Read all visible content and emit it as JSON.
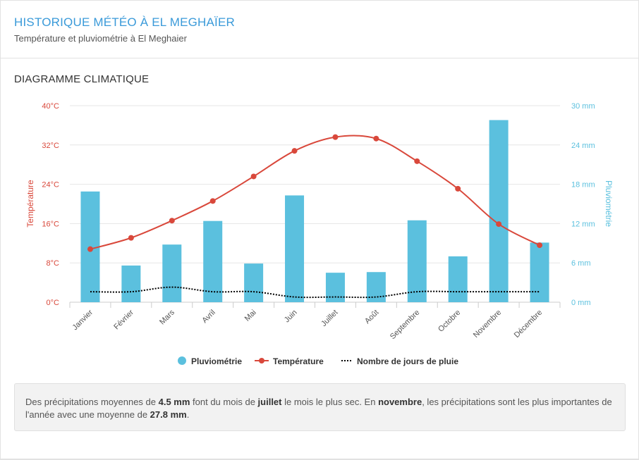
{
  "header": {
    "title": "HISTORIQUE MÉTÉO À EL MEGHAÏER",
    "subtitle": "Température et pluviométrie à El Meghaier"
  },
  "section": {
    "title": "DIAGRAMME CLIMATIQUE"
  },
  "colors": {
    "temperature": "#d9483b",
    "precipitation": "#5bc0de",
    "rain_days": "#000000",
    "title": "#3a9ad9"
  },
  "chart_data": {
    "type": "bar",
    "categories": [
      "Janvier",
      "Février",
      "Mars",
      "Avril",
      "Mai",
      "Juin",
      "Juillet",
      "Août",
      "Septembre",
      "Octobre",
      "Novembre",
      "Décembre"
    ],
    "series": [
      {
        "name": "Pluviométrie",
        "type": "bar",
        "axis": "right",
        "unit": "mm",
        "values": [
          16.9,
          5.6,
          8.8,
          12.4,
          5.9,
          16.3,
          4.5,
          4.6,
          12.5,
          7.0,
          27.8,
          9.1
        ]
      },
      {
        "name": "Température",
        "type": "line",
        "axis": "left",
        "unit": "°C",
        "values": [
          10.8,
          13.1,
          16.6,
          20.6,
          25.6,
          30.8,
          33.6,
          33.3,
          28.7,
          23.1,
          15.9,
          11.6
        ]
      },
      {
        "name": "Nombre de jours de pluie",
        "type": "line",
        "style": "dotted",
        "axis": "right",
        "values": [
          1.6,
          1.6,
          2.3,
          1.6,
          1.6,
          0.8,
          0.8,
          0.8,
          1.6,
          1.6,
          1.6,
          1.6
        ]
      }
    ],
    "y_left": {
      "label": "Température",
      "min": 0,
      "max": 40,
      "ticks": [
        "0°C",
        "8°C",
        "16°C",
        "24°C",
        "32°C",
        "40°C"
      ]
    },
    "y_right": {
      "label": "Pluviométrie",
      "min": 0,
      "max": 30,
      "ticks": [
        "0 mm",
        "6 mm",
        "12 mm",
        "18 mm",
        "24 mm",
        "30 mm"
      ]
    },
    "grid": true,
    "legend_position": "bottom"
  },
  "summary": {
    "t1": "Des précipitations moyennes de ",
    "driest_value": "4.5 mm",
    "t2": " font du mois de ",
    "driest_month": "juillet",
    "t3": " le mois le plus sec. En ",
    "wettest_month": "novembre",
    "t4": ", les précipitations sont les plus importantes de l'année avec une moyenne de ",
    "wettest_value": "27.8 mm",
    "t5": "."
  }
}
